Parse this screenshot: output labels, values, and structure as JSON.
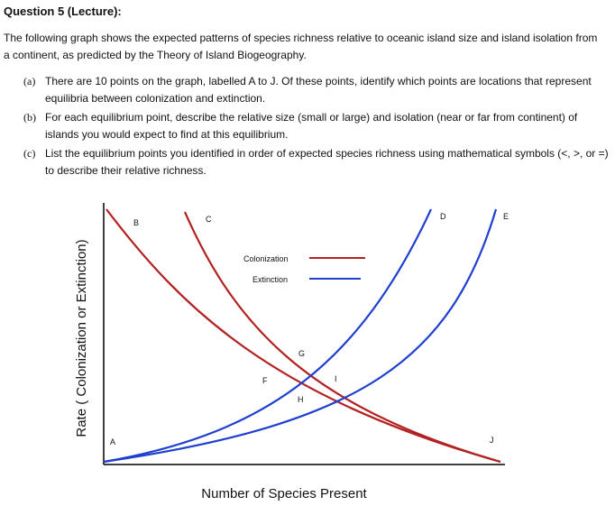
{
  "header": {
    "title": "Question 5 (Lecture):"
  },
  "intro": "The following graph shows the expected patterns of species richness relative to oceanic island size and island isolation from a continent, as predicted by the Theory of Island Biogeography.",
  "questions": [
    {
      "marker": "(a)",
      "text": "There are 10 points on the graph, labelled A to J. Of these points, identify which points are locations that represent equilibria between colonization and extinction."
    },
    {
      "marker": "(b)",
      "text": "For each equilibrium point, describe the relative size (small or large) and isolation (near or far from continent) of islands you would expect to find at this equilibrium."
    },
    {
      "marker": "(c)",
      "text": "List the equilibrium points you identified in order of expected species richness using mathematical symbols (<, >, or =) to describe their relative richness."
    }
  ],
  "figure": {
    "y_label": "Rate ( Colonization or Extinction)",
    "x_label": "Number of Species Present",
    "legend": [
      {
        "name": "Colonization"
      },
      {
        "name": "Extinction"
      }
    ],
    "points": [
      "A",
      "B",
      "C",
      "D",
      "E",
      "F",
      "G",
      "H",
      "I",
      "J"
    ]
  }
}
